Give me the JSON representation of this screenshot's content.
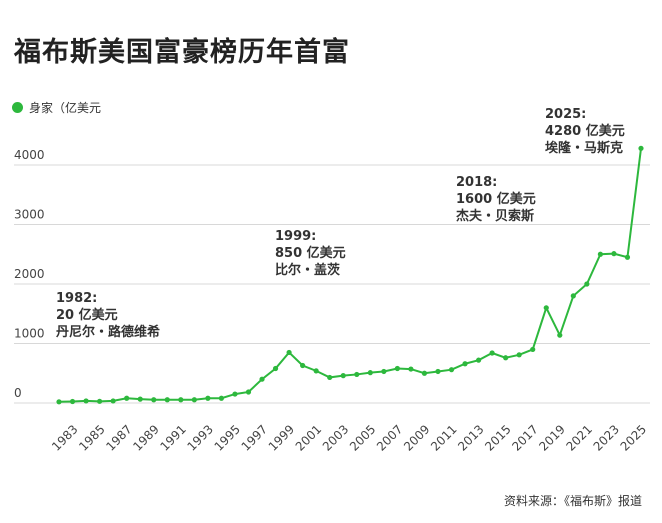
{
  "title": "福布斯美国富豪榜历年首富",
  "source": "资料来源：《福布斯》报道",
  "chart_data": {
    "type": "line",
    "title": "福布斯美国富豪榜历年首富",
    "legend": {
      "label": "身家（亿美元",
      "placement": "top-left"
    },
    "color": "#2db83d",
    "x": [
      1982,
      1983,
      1984,
      1985,
      1986,
      1987,
      1988,
      1989,
      1990,
      1991,
      1992,
      1993,
      1994,
      1995,
      1996,
      1997,
      1998,
      1999,
      2000,
      2001,
      2002,
      2003,
      2004,
      2005,
      2006,
      2007,
      2008,
      2009,
      2010,
      2011,
      2012,
      2013,
      2014,
      2015,
      2016,
      2017,
      2018,
      2019,
      2020,
      2021,
      2022,
      2023,
      2024,
      2025
    ],
    "y": [
      20,
      25,
      35,
      28,
      35,
      80,
      65,
      55,
      55,
      55,
      55,
      80,
      80,
      150,
      185,
      400,
      580,
      850,
      630,
      540,
      430,
      460,
      480,
      510,
      530,
      580,
      570,
      500,
      530,
      560,
      660,
      720,
      840,
      760,
      810,
      900,
      1600,
      1140,
      1800,
      2000,
      2500,
      2510,
      2450,
      4280
    ],
    "xticks": [
      "1983",
      "1985",
      "1987",
      "1989",
      "1991",
      "1993",
      "1995",
      "1997",
      "1999",
      "2001",
      "2003",
      "2005",
      "2007",
      "2009",
      "2011",
      "2013",
      "2015",
      "2017",
      "2019",
      "2021",
      "2023",
      "2025"
    ],
    "yticks": [
      "0",
      "1000",
      "2000",
      "3000",
      "4000"
    ],
    "ylim": [
      0,
      4000
    ],
    "grid": true,
    "annotations": [
      {
        "x": 1982,
        "lines": [
          "1982:",
          "20 亿美元",
          "丹尼尔・路德维希"
        ]
      },
      {
        "x": 1999,
        "lines": [
          "1999:",
          "850 亿美元",
          "比尔・盖茨"
        ]
      },
      {
        "x": 2018,
        "lines": [
          "2018:",
          "1600 亿美元",
          "杰夫・贝索斯"
        ]
      },
      {
        "x": 2025,
        "lines": [
          "2025:",
          "4280 亿美元",
          "埃隆・马斯克"
        ]
      }
    ]
  }
}
